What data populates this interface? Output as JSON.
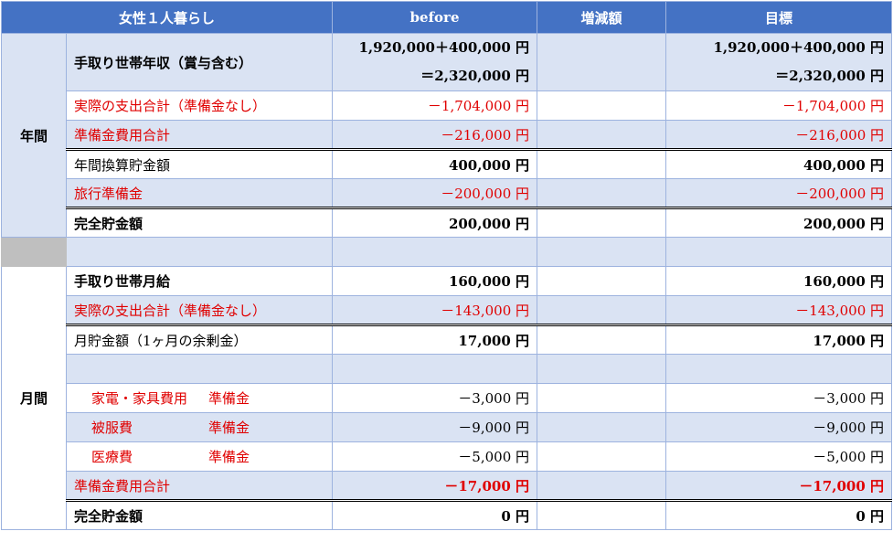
{
  "header": {
    "title": "女性１人暮らし",
    "before": "before",
    "change": "増減額",
    "target": "目標"
  },
  "annual": {
    "section_label": "年間",
    "rows": [
      {
        "label": "手取り世帯年収（賞与含む）",
        "before_line1": "1,920,000＋400,000 円",
        "before_line2": "＝2,320,000 円",
        "target_line1": "1,920,000＋400,000 円",
        "target_line2": "＝2,320,000 円"
      },
      {
        "label": "実際の支出合計（準備金なし）",
        "before": "－1,704,000 円",
        "target": "－1,704,000 円"
      },
      {
        "label": "準備金費用合計",
        "before": "－216,000 円",
        "target": "－216,000 円"
      },
      {
        "label": "年間換算貯金額",
        "before": "400,000 円",
        "target": "400,000 円"
      },
      {
        "label": "旅行準備金",
        "before": "－200,000 円",
        "target": "－200,000 円"
      },
      {
        "label": "完全貯金額",
        "before": "200,000 円",
        "target": "200,000 円"
      }
    ]
  },
  "monthly": {
    "section_label": "月間",
    "rows": [
      {
        "label": "手取り世帯月給",
        "before": "160,000 円",
        "target": "160,000 円"
      },
      {
        "label": "実際の支出合計（準備金なし）",
        "before": "－143,000 円",
        "target": "－143,000 円"
      },
      {
        "label": "月貯金額（1ヶ月の余剰金）",
        "before": "17,000 円",
        "target": "17,000 円"
      },
      {
        "label": "",
        "before": "",
        "target": ""
      },
      {
        "label": "家電・家具費用",
        "sub": "準備金",
        "before": "－3,000 円",
        "target": "－3,000 円"
      },
      {
        "label": "被服費",
        "sub": "準備金",
        "before": "－9,000 円",
        "target": "－9,000 円"
      },
      {
        "label": "医療費",
        "sub": "準備金",
        "before": "－5,000 円",
        "target": "－5,000 円"
      },
      {
        "label": "準備金費用合計",
        "before": "－17,000 円",
        "target": "－17,000 円"
      },
      {
        "label": "完全貯金額",
        "before": "0 円",
        "target": "0 円"
      }
    ]
  },
  "colors": {
    "header_bg": "#4472c4",
    "band_bg": "#dae3f3",
    "separator_bg": "#bfbfbf",
    "negative_text": "#e00000"
  }
}
